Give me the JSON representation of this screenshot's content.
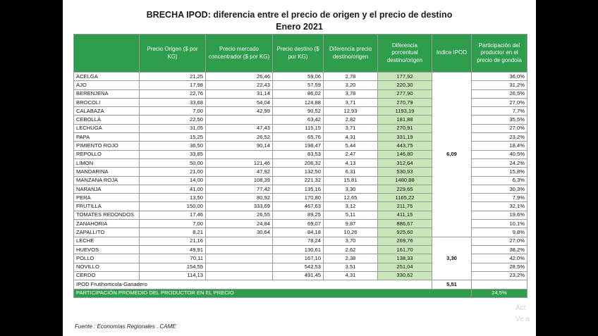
{
  "title": "BRECHA IPOD: diferencia entre el precio de origen y el precio de destino",
  "subtitle": "Enero 2021",
  "headers": [
    "",
    "Precio Origen ($ por KG)",
    "Precio mercado concentrador ($ por KG)",
    "Precio destino ($ por KG)",
    "Diferencia precio destino/origen",
    "Diferencia porcentual destino/origen",
    "Indice IPOD",
    "Participación del productor en el precio de gondola"
  ],
  "group1": {
    "index": "6,09",
    "rows": [
      [
        "ACELGA",
        "21,25",
        "26,46",
        "59,06",
        "2,78",
        "177,92",
        "36,0%"
      ],
      [
        "AJO",
        "17,98",
        "22,43",
        "57,59",
        "3,20",
        "220,30",
        "31,2%"
      ],
      [
        "BERENJENA",
        "22,76",
        "31,14",
        "86,02",
        "3,78",
        "277,90",
        "26,5%"
      ],
      [
        "BROCOLI",
        "33,68",
        "54,04",
        "124,88",
        "3,71",
        "270,79",
        "27,0%"
      ],
      [
        "CALABAZA",
        "7,00",
        "42,99",
        "90,52",
        "12,93",
        "1193,19",
        "7,7%"
      ],
      [
        "CEBOLLA",
        "22,50",
        "",
        "63,42",
        "2,82",
        "181,88",
        "35,5%"
      ],
      [
        "LECHUGA",
        "31,05",
        "47,43",
        "115,15",
        "3,71",
        "270,91",
        "27,0%"
      ],
      [
        "PAPA",
        "15,25",
        "26,52",
        "65,76",
        "4,31",
        "331,19",
        "23,2%"
      ],
      [
        "PIMIENTO ROJO",
        "36,50",
        "90,14",
        "198,47",
        "5,44",
        "443,75",
        "18,4%"
      ],
      [
        "REPOLLO",
        "33,85",
        "",
        "83,53",
        "2,47",
        "146,80",
        "40,5%"
      ],
      [
        "LIMON",
        "50,00",
        "121,46",
        "206,32",
        "4,13",
        "312,64",
        "24,2%"
      ],
      [
        "MANDARINA",
        "21,00",
        "47,92",
        "132,50",
        "6,31",
        "530,93",
        "15,8%"
      ],
      [
        "MANZANA ROJA",
        "14,00",
        "108,39",
        "221,32",
        "15,81",
        "1480,88",
        "6,3%"
      ],
      [
        "NARANJA",
        "41,00",
        "77,42",
        "135,16",
        "3,30",
        "229,65",
        "30,3%"
      ],
      [
        "PERA",
        "13,50",
        "80,92",
        "170,80",
        "12,65",
        "1165,22",
        "7,9%"
      ],
      [
        "FRUTILLA",
        "150,00",
        "333,69",
        "467,63",
        "3,12",
        "211,75",
        "32,1%"
      ],
      [
        "TOMATES REDONDOS",
        "17,46",
        "26,55",
        "89,25",
        "5,11",
        "411,15",
        "19,6%"
      ],
      [
        "ZANAHORIA",
        "7,00",
        "24,84",
        "69,07",
        "9,87",
        "886,67",
        "10,1%"
      ],
      [
        "ZAPALLITO",
        "8,21",
        "30,64",
        "84,18",
        "10,26",
        "925,60",
        "9,8%"
      ]
    ]
  },
  "group2": {
    "index": "3,30",
    "rows": [
      [
        "LECHE",
        "21,16",
        "",
        "78,24",
        "3,70",
        "269,76",
        "27,0%"
      ],
      [
        "HUEVOS",
        "49,91",
        "",
        "130,61",
        "2,62",
        "161,70",
        "38,2%"
      ],
      [
        "POLLO",
        "70,11",
        "",
        "167,10",
        "2,38",
        "138,33",
        "42,0%"
      ],
      [
        "NOVILLO",
        "154,55",
        "",
        "542,53",
        "3,51",
        "251,04",
        "28,5%"
      ],
      [
        "CERDO",
        "114,13",
        "",
        "491,45",
        "4,31",
        "330,62",
        "23,2%"
      ]
    ]
  },
  "footer": {
    "ipod_label": "IPOD Frutihorticola-Ganadero",
    "ipod_value": "5,51",
    "participation_label": "PARTICIPACIÓN PROMEDIO DEL PRODUCTOR EN EL PRECIO",
    "participation_value": "24,5%"
  },
  "source": "Fuente : Economías Regionales . CAME",
  "watermark": [
    "Act",
    "Ve a"
  ],
  "colors": {
    "header_green": "#2e9e4d",
    "pct_green": "#c9e6b9"
  }
}
